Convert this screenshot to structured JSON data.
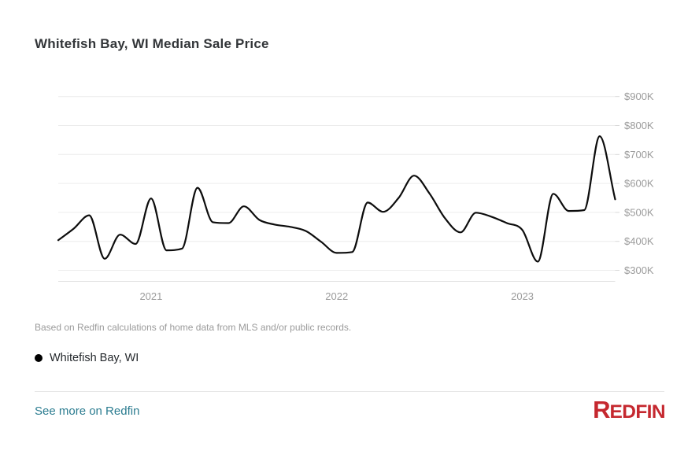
{
  "header": {
    "title": "Whitefish Bay, WI Median Sale Price"
  },
  "chart_data": {
    "type": "line",
    "title": "Whitefish Bay, WI Median Sale Price",
    "grid": "horizontal",
    "legend_position": "bottom-left",
    "x_unit": "month",
    "x": [
      "2020-07",
      "2020-08",
      "2020-09",
      "2020-10",
      "2020-11",
      "2020-12",
      "2021-01",
      "2021-02",
      "2021-03",
      "2021-04",
      "2021-05",
      "2021-06",
      "2021-07",
      "2021-08",
      "2021-09",
      "2021-10",
      "2021-11",
      "2021-12",
      "2022-01",
      "2022-02",
      "2022-03",
      "2022-04",
      "2022-05",
      "2022-06",
      "2022-07",
      "2022-08",
      "2022-09",
      "2022-10",
      "2022-11",
      "2022-12",
      "2023-01",
      "2023-02",
      "2023-03",
      "2023-04",
      "2023-05",
      "2023-06",
      "2023-07"
    ],
    "series": [
      {
        "name": "Whitefish Bay, WI",
        "color": "#0d0d0d",
        "values": [
          404,
          444,
          490,
          340,
          423,
          391,
          548,
          369,
          375,
          585,
          466,
          463,
          521,
          474,
          458,
          450,
          436,
          398,
          360,
          363,
          534,
          502,
          550,
          627,
          565,
          480,
          431,
          499,
          485,
          463,
          439,
          330,
          564,
          505,
          508,
          763,
          545
        ]
      }
    ],
    "y_axis": {
      "side": "right",
      "unit": "USD thousands",
      "tick_values": [
        300,
        400,
        500,
        600,
        700,
        800,
        900
      ],
      "tick_labels": [
        "$300K",
        "$400K",
        "$500K",
        "$600K",
        "$700K",
        "$800K",
        "$900K"
      ],
      "min": 300,
      "max": 900
    },
    "x_axis": {
      "tick_labels": [
        "2021",
        "2022",
        "2023"
      ],
      "tick_month_indices": [
        6,
        18,
        30
      ]
    }
  },
  "footnote": {
    "text": "Based on Redfin calculations of home data from MLS and/or public records."
  },
  "legend": {
    "items": [
      {
        "label": "Whitefish Bay, WI",
        "color": "#000000"
      }
    ]
  },
  "footer": {
    "link_label": "See more on Redfin",
    "link_color": "#2b7c90",
    "logo_text": "REDFIN",
    "logo_color": "#c5282f"
  }
}
